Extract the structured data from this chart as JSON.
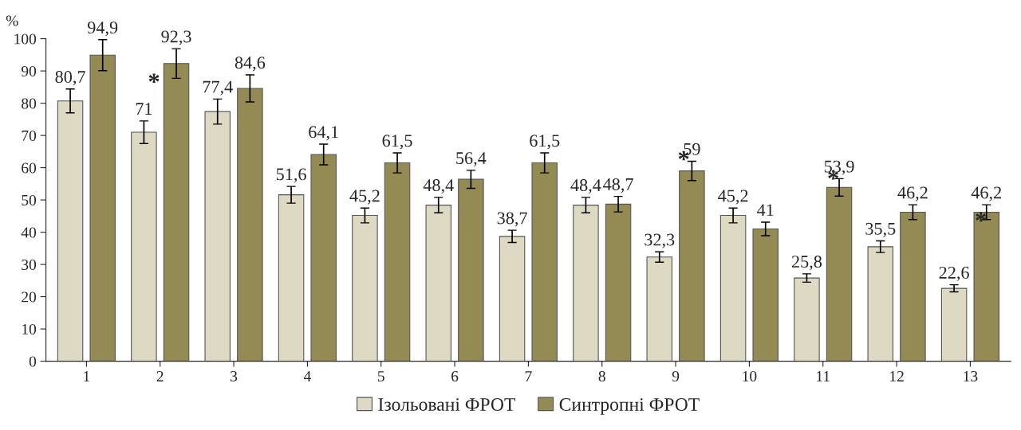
{
  "chart_data": {
    "type": "bar",
    "ylabel": "%",
    "categories": [
      "1",
      "2",
      "3",
      "4",
      "5",
      "6",
      "7",
      "8",
      "9",
      "10",
      "11",
      "12",
      "13"
    ],
    "series": [
      {
        "name": "Ізольовані ФРОТ",
        "color": "#ddd9c3",
        "values": [
          80.7,
          71,
          77.4,
          51.6,
          45.2,
          48.4,
          38.7,
          48.4,
          32.3,
          45.2,
          25.8,
          35.5,
          22.6
        ],
        "value_labels": [
          "80,7",
          "71",
          "77,4",
          "51,6",
          "45,2",
          "48,4",
          "38,7",
          "48,4",
          "32,3",
          "45,2",
          "25,8",
          "35,5",
          "22,6"
        ],
        "errors": [
          3.7,
          3.5,
          3.9,
          2.6,
          2.3,
          2.4,
          1.9,
          2.4,
          1.6,
          2.3,
          1.3,
          1.8,
          1.1
        ]
      },
      {
        "name": "Синтропні ФРОТ",
        "color": "#948a54",
        "values": [
          94.9,
          92.3,
          84.6,
          64.1,
          61.5,
          56.4,
          61.5,
          48.7,
          59,
          41,
          53.9,
          46.2,
          46.2
        ],
        "value_labels": [
          "94,9",
          "92,3",
          "84,6",
          "64,1",
          "61,5",
          "56,4",
          "61,5",
          "48,7",
          "59",
          "41",
          "53,9",
          "46,2",
          "46,2"
        ],
        "errors": [
          4.8,
          4.6,
          4.2,
          3.2,
          3.1,
          2.8,
          3.1,
          2.4,
          3.0,
          2.1,
          2.7,
          2.3,
          2.3
        ]
      }
    ],
    "ylim": [
      0,
      100
    ],
    "yticks": [
      0,
      10,
      20,
      30,
      40,
      50,
      60,
      70,
      80,
      90,
      100
    ],
    "grid": false,
    "legend": "bottom",
    "annotations": [
      "*",
      "*",
      "*",
      "*"
    ]
  }
}
